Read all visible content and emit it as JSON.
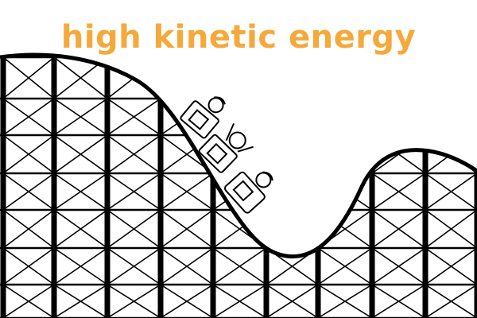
{
  "caption": {
    "text": "high kinetic energy",
    "color": "#F5A93A"
  },
  "colors": {
    "stroke": "#000000",
    "background": "#ffffff"
  }
}
